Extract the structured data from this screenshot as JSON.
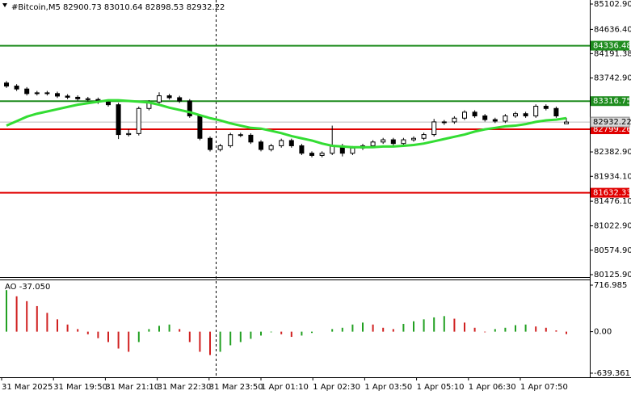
{
  "chart_data": {
    "type": "candlestick",
    "title": "#Bitcoin,M5  82900.73 83010.64 82898.53 82932.22",
    "ylim": [
      80081,
      85177
    ],
    "yticks": [
      {
        "value": 85102.9,
        "label": "85102.90"
      },
      {
        "value": 84636.4,
        "label": "84636.40"
      },
      84191.38,
      {
        "value": 83742.9,
        "label": "83742.90"
      },
      {
        "value": 82382.9,
        "label": "82382.90"
      },
      {
        "value": 81934.1,
        "label": "81934.10"
      },
      {
        "value": 81476.1,
        "label": "81476.10"
      },
      {
        "value": 81022.9,
        "label": "81022.90"
      },
      {
        "value": 80574.9,
        "label": "80574.90"
      },
      {
        "value": 80125.9,
        "label": "80125.90"
      }
    ],
    "levels": [
      {
        "value": 84336.48,
        "color": "#1e8c1e"
      },
      {
        "value": 83316.75,
        "color": "#1e8c1e"
      },
      {
        "value": 82799.26,
        "color": "#e00000"
      },
      {
        "value": 81632.33,
        "color": "#e00000"
      }
    ],
    "last_price": 82932.22,
    "ma_color": "#33dd33",
    "x_labels": [
      "31 Mar 2025",
      "31 Mar 19:50",
      "31 Mar 21:10",
      "31 Mar 22:30",
      "31 Mar 23:50",
      "1 Apr 01:10",
      "1 Apr 02:30",
      "1 Apr 03:50",
      "1 Apr 05:10",
      "1 Apr 06:30",
      "1 Apr 07:50"
    ],
    "ohlc": [
      [
        83650,
        83685,
        83559,
        83594
      ],
      [
        83594,
        83629,
        83505,
        83540
      ],
      [
        83540,
        83575,
        83421,
        83456
      ],
      [
        83456,
        83505,
        83421,
        83470
      ],
      [
        83470,
        83505,
        83421,
        83456
      ],
      [
        83456,
        83491,
        83375,
        83410
      ],
      [
        83410,
        83445,
        83353,
        83388
      ],
      [
        83388,
        83423,
        83325,
        83360
      ],
      [
        83360,
        83395,
        83312,
        83347
      ],
      [
        83347,
        83382,
        83265,
        83300
      ],
      [
        83300,
        83335,
        83216,
        83251
      ],
      [
        83251,
        83286,
        82620,
        82702
      ],
      [
        82702,
        82800,
        82667,
        82720
      ],
      [
        82720,
        83217,
        82685,
        83182
      ],
      [
        83182,
        83335,
        83147,
        83300
      ],
      [
        83300,
        83480,
        83265,
        83415
      ],
      [
        83415,
        83450,
        83345,
        83380
      ],
      [
        83380,
        83415,
        83284,
        83319
      ],
      [
        83319,
        83354,
        83010,
        83045
      ],
      [
        83045,
        83080,
        82598,
        82633
      ],
      [
        82633,
        82668,
        82392,
        82427
      ],
      [
        82427,
        82531,
        82392,
        82496
      ],
      [
        82496,
        82735,
        82461,
        82700
      ],
      [
        82700,
        82735,
        82655,
        82690
      ],
      [
        82690,
        82725,
        82530,
        82565
      ],
      [
        82565,
        82600,
        82393,
        82428
      ],
      [
        82428,
        82531,
        82393,
        82496
      ],
      [
        82496,
        82627,
        82461,
        82592
      ],
      [
        82592,
        82627,
        82461,
        82496
      ],
      [
        82496,
        82531,
        82324,
        82359
      ],
      [
        82359,
        82394,
        82283,
        82318
      ],
      [
        82318,
        82394,
        82283,
        82359
      ],
      [
        82359,
        82866,
        82324,
        82496
      ],
      [
        82496,
        82531,
        82300,
        82359
      ],
      [
        82359,
        82490,
        82324,
        82455
      ],
      [
        82455,
        82531,
        82420,
        82496
      ],
      [
        82496,
        82600,
        82461,
        82565
      ],
      [
        82565,
        82641,
        82530,
        82606
      ],
      [
        82606,
        82641,
        82502,
        82537
      ],
      [
        82537,
        82641,
        82502,
        82606
      ],
      [
        82606,
        82668,
        82571,
        82633
      ],
      [
        82633,
        82737,
        82598,
        82702
      ],
      [
        82702,
        82990,
        82667,
        82935
      ],
      [
        82935,
        82970,
        82880,
        82935
      ],
      [
        82935,
        83039,
        82900,
        83004
      ],
      [
        83004,
        83149,
        82969,
        83114
      ],
      [
        83114,
        83149,
        83010,
        83045
      ],
      [
        83045,
        83080,
        82942,
        82977
      ],
      [
        82977,
        83012,
        82914,
        82949
      ],
      [
        82949,
        83080,
        82914,
        83045
      ],
      [
        83045,
        83121,
        83010,
        83086
      ],
      [
        83086,
        83121,
        83010,
        83045
      ],
      [
        83045,
        83258,
        83010,
        83223
      ],
      [
        83223,
        83258,
        83147,
        83182
      ],
      [
        83182,
        83217,
        83010,
        83045
      ],
      [
        82900.73,
        83010.64,
        82898.53,
        82932.22
      ]
    ],
    "ma": [
      82866,
      82949,
      83031,
      83086,
      83127,
      83168,
      83210,
      83251,
      83278,
      83306,
      83333,
      83333,
      83319,
      83306,
      83292,
      83251,
      83196,
      83155,
      83114,
      83059,
      83004,
      82963,
      82908,
      82866,
      82825,
      82812,
      82771,
      82729,
      82674,
      82633,
      82592,
      82537,
      82496,
      82482,
      82469,
      82469,
      82469,
      82482,
      82482,
      82496,
      82510,
      82537,
      82578,
      82620,
      82661,
      82702,
      82757,
      82798,
      82825,
      82853,
      82866,
      82894,
      82935,
      82963,
      82976,
      83004
    ],
    "ao": {
      "label": "AO -37.050",
      "ylim": [
        -677,
        804
      ],
      "yticks": [
        716.985,
        {
          "value": 0,
          "label": "0.00"
        },
        -639.361
      ],
      "up_color": "#22a022",
      "down_color": "#d02020",
      "values": [
        640,
        545,
        470,
        394,
        290,
        190,
        110,
        40,
        -40,
        -100,
        -160,
        -260,
        -310,
        -160,
        40,
        90,
        110,
        40,
        -160,
        -310,
        -360,
        -310,
        -210,
        -160,
        -110,
        -60,
        -10,
        -40,
        -80,
        -60,
        -20,
        0,
        40,
        60,
        110,
        140,
        110,
        60,
        40,
        120,
        160,
        190,
        220,
        240,
        200,
        140,
        60,
        -10,
        40,
        60,
        100,
        110,
        80,
        60,
        20,
        -37.05
      ]
    }
  }
}
